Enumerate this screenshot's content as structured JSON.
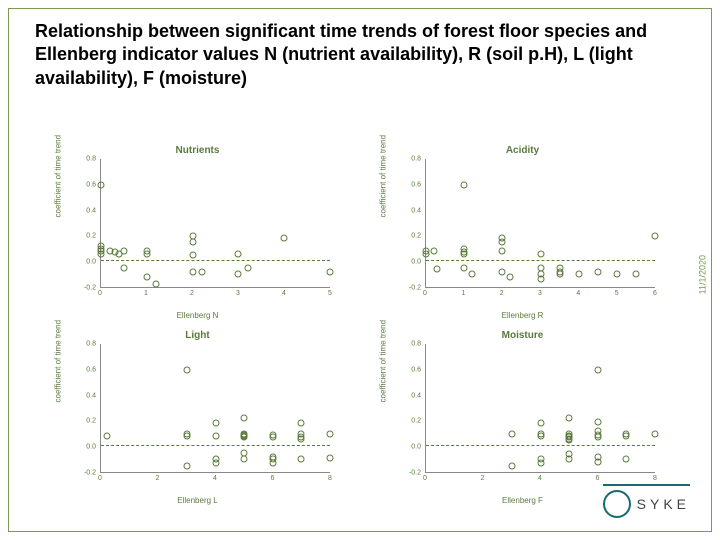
{
  "title": "Relationship between significant time trends of forest floor species and Ellenberg indicator values N (nutrient availability), R (soil p.H), L (light availability), F (moisture)",
  "date": "11/1/2020",
  "logo_text": "SYKE",
  "plots": [
    {
      "title": "Nutrients",
      "xlabel": "Ellenberg N",
      "ylabel": "coefficient of time trend",
      "ylim": [
        -0.2,
        0.8
      ],
      "yticks": [
        -0.2,
        0.0,
        0.2,
        0.4,
        0.6,
        0.8
      ],
      "xlim": [
        0,
        5
      ],
      "xticks": [
        0,
        1,
        2,
        3,
        4,
        5
      ],
      "points": [
        [
          0.0,
          0.6
        ],
        [
          0.0,
          0.12
        ],
        [
          0.0,
          0.1
        ],
        [
          0.0,
          0.08
        ],
        [
          0.0,
          0.06
        ],
        [
          0.2,
          0.08
        ],
        [
          0.3,
          0.07
        ],
        [
          0.4,
          0.06
        ],
        [
          0.5,
          0.08
        ],
        [
          0.5,
          -0.05
        ],
        [
          1.0,
          0.08
        ],
        [
          1.0,
          0.06
        ],
        [
          1.0,
          -0.12
        ],
        [
          1.2,
          -0.18
        ],
        [
          2.0,
          0.2
        ],
        [
          2.0,
          0.15
        ],
        [
          2.0,
          0.05
        ],
        [
          2.0,
          -0.08
        ],
        [
          2.2,
          -0.08
        ],
        [
          3.0,
          0.06
        ],
        [
          3.0,
          -0.1
        ],
        [
          3.2,
          -0.05
        ],
        [
          4.0,
          0.18
        ],
        [
          5.0,
          -0.08
        ]
      ]
    },
    {
      "title": "Acidity",
      "xlabel": "Ellenberg R",
      "ylabel": "coefficient of time trend",
      "ylim": [
        -0.2,
        0.8
      ],
      "yticks": [
        -0.2,
        0.0,
        0.2,
        0.4,
        0.6,
        0.8
      ],
      "xlim": [
        0,
        6
      ],
      "xticks": [
        0,
        1,
        2,
        3,
        4,
        5,
        6
      ],
      "points": [
        [
          1.0,
          0.6
        ],
        [
          0.0,
          0.08
        ],
        [
          0.0,
          0.06
        ],
        [
          0.2,
          0.08
        ],
        [
          0.3,
          -0.06
        ],
        [
          1.0,
          0.1
        ],
        [
          1.0,
          0.07
        ],
        [
          1.0,
          0.06
        ],
        [
          1.0,
          -0.05
        ],
        [
          1.2,
          -0.1
        ],
        [
          2.0,
          0.18
        ],
        [
          2.0,
          0.15
        ],
        [
          2.0,
          0.08
        ],
        [
          2.0,
          -0.08
        ],
        [
          2.2,
          -0.12
        ],
        [
          3.0,
          0.06
        ],
        [
          3.0,
          -0.14
        ],
        [
          3.0,
          -0.1
        ],
        [
          3.0,
          -0.05
        ],
        [
          3.5,
          -0.05
        ],
        [
          3.5,
          -0.1
        ],
        [
          3.5,
          -0.08
        ],
        [
          4.0,
          -0.1
        ],
        [
          4.5,
          -0.08
        ],
        [
          5.0,
          -0.1
        ],
        [
          5.5,
          -0.1
        ],
        [
          6.0,
          0.2
        ]
      ]
    },
    {
      "title": "Light",
      "xlabel": "Ellenberg L",
      "ylabel": "coefficient of time trend",
      "ylim": [
        -0.2,
        0.8
      ],
      "yticks": [
        -0.2,
        0.0,
        0.2,
        0.4,
        0.6,
        0.8
      ],
      "xlim": [
        0,
        8
      ],
      "xticks": [
        0,
        2,
        4,
        6,
        8
      ],
      "points": [
        [
          3.0,
          0.6
        ],
        [
          0.2,
          0.08
        ],
        [
          3.0,
          0.1
        ],
        [
          3.0,
          0.08
        ],
        [
          3.0,
          -0.15
        ],
        [
          4.0,
          0.18
        ],
        [
          4.0,
          0.08
        ],
        [
          4.0,
          -0.1
        ],
        [
          4.0,
          -0.13
        ],
        [
          5.0,
          0.22
        ],
        [
          5.0,
          0.1
        ],
        [
          5.0,
          0.09
        ],
        [
          5.0,
          0.08
        ],
        [
          5.0,
          0.07
        ],
        [
          5.0,
          -0.05
        ],
        [
          5.0,
          -0.1
        ],
        [
          6.0,
          0.09
        ],
        [
          6.0,
          0.07
        ],
        [
          6.0,
          -0.08
        ],
        [
          6.0,
          -0.1
        ],
        [
          6.0,
          -0.13
        ],
        [
          7.0,
          0.18
        ],
        [
          7.0,
          0.1
        ],
        [
          7.0,
          0.07
        ],
        [
          7.0,
          0.06
        ],
        [
          7.0,
          -0.1
        ],
        [
          8.0,
          0.1
        ],
        [
          8.0,
          -0.09
        ]
      ]
    },
    {
      "title": "Moisture",
      "xlabel": "Ellenberg F",
      "ylabel": "coefficient of time trend",
      "ylim": [
        -0.2,
        0.8
      ],
      "yticks": [
        -0.2,
        0.0,
        0.2,
        0.4,
        0.6,
        0.8
      ],
      "xlim": [
        0,
        8
      ],
      "xticks": [
        0,
        2,
        4,
        6,
        8
      ],
      "points": [
        [
          6.0,
          0.6
        ],
        [
          3.0,
          0.1
        ],
        [
          3.0,
          -0.15
        ],
        [
          4.0,
          0.18
        ],
        [
          4.0,
          0.1
        ],
        [
          4.0,
          0.08
        ],
        [
          4.0,
          -0.1
        ],
        [
          4.0,
          -0.13
        ],
        [
          5.0,
          0.22
        ],
        [
          5.0,
          0.1
        ],
        [
          5.0,
          0.08
        ],
        [
          5.0,
          0.07
        ],
        [
          5.0,
          0.06
        ],
        [
          5.0,
          0.05
        ],
        [
          5.0,
          -0.06
        ],
        [
          5.0,
          -0.1
        ],
        [
          6.0,
          0.19
        ],
        [
          6.0,
          0.12
        ],
        [
          6.0,
          0.09
        ],
        [
          6.0,
          0.07
        ],
        [
          6.0,
          -0.08
        ],
        [
          6.0,
          -0.12
        ],
        [
          7.0,
          0.1
        ],
        [
          7.0,
          0.08
        ],
        [
          7.0,
          -0.1
        ],
        [
          8.0,
          0.1
        ]
      ]
    }
  ],
  "colors": {
    "border": "#7a9a4d",
    "text": "#000000",
    "plot_accent": "#5a7a3d",
    "axis": "#888888",
    "logo": "#1a6b6b"
  }
}
